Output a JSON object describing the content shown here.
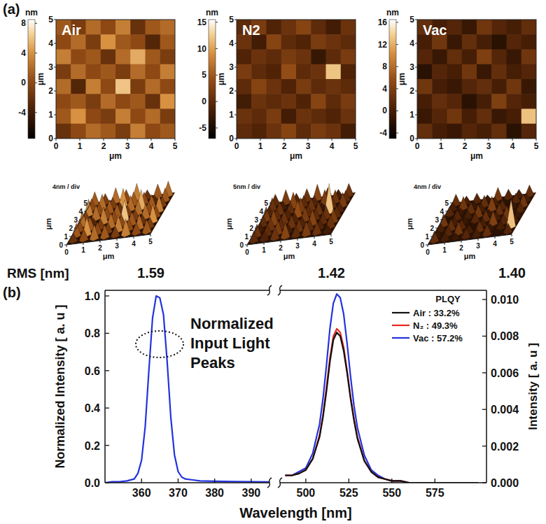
{
  "panel_labels": [
    "(a)",
    "(b)"
  ],
  "rms_label": "RMS [nm]",
  "chart_data": [
    {
      "type": "heatmap",
      "title": "Air",
      "x_label": "μm",
      "y_label": "μm",
      "xlim": [
        0,
        5
      ],
      "ylim": [
        0,
        5
      ],
      "xticks": [
        0,
        1,
        2,
        3,
        4,
        5
      ],
      "yticks": [
        0,
        1,
        2,
        3,
        4,
        5
      ],
      "cells": [
        [
          1,
          -1,
          2,
          0,
          3,
          -2,
          1,
          2
        ],
        [
          0,
          2,
          -1,
          4,
          1,
          0,
          -3,
          1
        ],
        [
          3,
          0,
          1,
          -2,
          2,
          5,
          1,
          -1
        ],
        [
          -1,
          2,
          0,
          1,
          -1,
          2,
          0,
          3
        ],
        [
          2,
          -3,
          3,
          0,
          6,
          -1,
          2,
          0
        ],
        [
          0,
          1,
          -1,
          2,
          0,
          1,
          -2,
          4
        ],
        [
          1,
          4,
          0,
          -1,
          3,
          0,
          2,
          -1
        ],
        [
          -2,
          0,
          2,
          1,
          -1,
          3,
          0,
          1
        ]
      ],
      "colorbar": {
        "label": "nm",
        "range": [
          -7.5,
          8.5
        ],
        "ticks": [
          -4,
          0,
          4,
          8
        ]
      },
      "surface_label": "4nm / div",
      "rms": "1.59"
    },
    {
      "type": "heatmap",
      "title": "N2",
      "x_label": "μm",
      "y_label": "μm",
      "xlim": [
        0,
        5
      ],
      "ylim": [
        0,
        5
      ],
      "xticks": [
        0,
        1,
        2,
        3,
        4,
        5
      ],
      "yticks": [
        0,
        1,
        2,
        3,
        4,
        5
      ],
      "cells": [
        [
          0,
          2,
          -1,
          1,
          3,
          0,
          -2,
          1
        ],
        [
          1,
          -2,
          3,
          0,
          -1,
          2,
          1,
          0
        ],
        [
          -1,
          1,
          0,
          2,
          1,
          -3,
          0,
          2
        ],
        [
          2,
          0,
          -1,
          4,
          0,
          1,
          12,
          -1
        ],
        [
          0,
          3,
          1,
          -1,
          2,
          0,
          1,
          0
        ],
        [
          -2,
          1,
          0,
          1,
          -1,
          3,
          0,
          2
        ],
        [
          1,
          0,
          2,
          -2,
          1,
          0,
          -1,
          1
        ],
        [
          0,
          -1,
          1,
          3,
          0,
          2,
          1,
          -2
        ]
      ],
      "colorbar": {
        "label": "nm",
        "range": [
          -7,
          15.5
        ],
        "ticks": [
          -5,
          0,
          5,
          10,
          15
        ]
      },
      "surface_label": "5nm / div",
      "rms": "1.42"
    },
    {
      "type": "heatmap",
      "title": "Vac",
      "x_label": "μm",
      "y_label": "μm",
      "xlim": [
        0,
        5
      ],
      "ylim": [
        0,
        5
      ],
      "xticks": [
        0,
        1,
        2,
        3,
        4,
        5
      ],
      "yticks": [
        0,
        1,
        2,
        3,
        4,
        5
      ],
      "cells": [
        [
          2,
          0,
          1,
          -1,
          3,
          1,
          0,
          2
        ],
        [
          0,
          3,
          -1,
          2,
          0,
          -2,
          1,
          0
        ],
        [
          1,
          -1,
          2,
          0,
          4,
          1,
          -1,
          3
        ],
        [
          -2,
          1,
          0,
          3,
          -1,
          2,
          0,
          1
        ],
        [
          3,
          0,
          -1,
          1,
          2,
          0,
          3,
          -1
        ],
        [
          0,
          2,
          1,
          -2,
          0,
          4,
          1,
          0
        ],
        [
          -1,
          1,
          3,
          0,
          2,
          -1,
          0,
          13
        ],
        [
          2,
          0,
          -1,
          1,
          0,
          2,
          -2,
          1
        ]
      ],
      "colorbar": {
        "label": "nm",
        "range": [
          -5,
          16.5
        ],
        "ticks": [
          -4,
          0,
          4,
          8,
          12,
          16
        ]
      },
      "surface_label": "4nm / div",
      "rms": "1.40"
    },
    {
      "type": "line",
      "x_label": "Wavelength [nm]",
      "y_label": "Normalized Intensity [ a. u ]",
      "y2_label": "Intensity [ a. u ]",
      "xlim": [
        350,
        605
      ],
      "x_break": [
        395,
        485
      ],
      "xticks": [
        360,
        370,
        380,
        390,
        500,
        525,
        550,
        575
      ],
      "ylim": [
        0,
        1.03
      ],
      "yticks": [
        {
          "value": 0,
          "label": "0.0"
        },
        0.2,
        0.4,
        0.6,
        0.8,
        {
          "value": 1,
          "label": "1.0"
        }
      ],
      "y2lim": [
        0,
        0.0105
      ],
      "y2ticks": [
        {
          "value": 0,
          "label": "0.000"
        },
        0.002,
        0.004,
        0.006,
        0.008,
        {
          "value": 0.01,
          "label": "0.010"
        }
      ],
      "annotation": "Normalized Input Light Peaks",
      "legend": "upper right",
      "legend_title": "PLQY",
      "series": [
        {
          "color": "#2233dd",
          "axis": "y",
          "x": [
            350,
            352,
            354,
            356,
            358,
            359,
            360,
            361,
            362,
            363,
            364,
            365,
            366,
            367,
            368,
            369,
            370,
            371,
            372,
            374,
            376,
            380,
            385,
            390,
            395
          ],
          "values": [
            0.0,
            0.005,
            0.005,
            0.01,
            0.02,
            0.05,
            0.12,
            0.3,
            0.6,
            0.88,
            1.0,
            0.99,
            0.9,
            0.65,
            0.35,
            0.15,
            0.06,
            0.03,
            0.02,
            0.015,
            0.01,
            0.008,
            0.006,
            0.005,
            0.004
          ]
        },
        {
          "name": "Air : 33.2%",
          "color": "#111111",
          "axis": "y2",
          "x": [
            488,
            492,
            496,
            500,
            504,
            508,
            510,
            512,
            514,
            516,
            518,
            520,
            522,
            524,
            526,
            528,
            530,
            534,
            538,
            542,
            546,
            550,
            555,
            560,
            570,
            580,
            590,
            600
          ],
          "values": [
            0.0004,
            0.0004,
            0.0005,
            0.0007,
            0.0013,
            0.0025,
            0.0036,
            0.005,
            0.0066,
            0.0078,
            0.0082,
            0.008,
            0.0072,
            0.006,
            0.0046,
            0.0034,
            0.0024,
            0.0012,
            0.0006,
            0.0003,
            0.0002,
            0.0001,
            0.0001,
            0,
            0,
            0,
            0,
            0
          ]
        },
        {
          "name": "N₂ : 49.3%",
          "color": "#e8281e",
          "axis": "y2",
          "x": [
            488,
            492,
            496,
            500,
            504,
            508,
            510,
            512,
            514,
            516,
            518,
            520,
            522,
            524,
            526,
            528,
            530,
            534,
            538,
            542,
            546,
            550,
            555,
            560,
            570,
            580,
            590,
            600
          ],
          "values": [
            0.0004,
            0.0004,
            0.0005,
            0.0007,
            0.0013,
            0.0026,
            0.0037,
            0.0052,
            0.0068,
            0.008,
            0.0084,
            0.0082,
            0.0074,
            0.0061,
            0.0047,
            0.0035,
            0.0025,
            0.0012,
            0.0006,
            0.0003,
            0.0002,
            0.0001,
            0.0001,
            0,
            0,
            0,
            0,
            0
          ]
        },
        {
          "name": "Vac : 57.2%",
          "color": "#2233dd",
          "axis": "y2",
          "x": [
            488,
            492,
            496,
            500,
            504,
            508,
            510,
            512,
            514,
            516,
            518,
            520,
            522,
            524,
            526,
            528,
            530,
            534,
            538,
            542,
            546,
            550,
            555,
            560,
            570,
            580,
            590,
            600
          ],
          "values": [
            0.0004,
            0.0004,
            0.0006,
            0.0008,
            0.0016,
            0.0032,
            0.0046,
            0.0064,
            0.0084,
            0.0098,
            0.0103,
            0.0101,
            0.0092,
            0.0076,
            0.0058,
            0.0042,
            0.003,
            0.0015,
            0.0007,
            0.0004,
            0.0002,
            0.0001,
            0.0001,
            0,
            0,
            0,
            0,
            0
          ]
        }
      ]
    }
  ]
}
